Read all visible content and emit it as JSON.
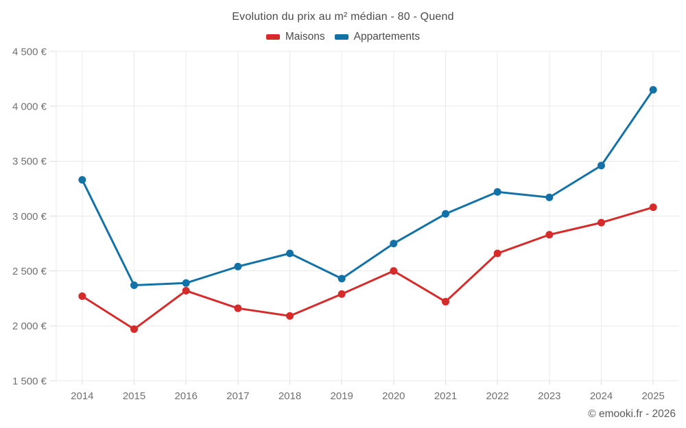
{
  "chart_data": {
    "type": "line",
    "title": "Evolution du prix au m² médian - 80 - Quend",
    "categories": [
      "2014",
      "2015",
      "2016",
      "2017",
      "2018",
      "2019",
      "2020",
      "2021",
      "2022",
      "2023",
      "2024",
      "2025"
    ],
    "series": [
      {
        "name": "Maisons",
        "color": "#d62b2b",
        "values": [
          2270,
          1970,
          2320,
          2160,
          2090,
          2290,
          2500,
          2220,
          2660,
          2830,
          2940,
          3080
        ]
      },
      {
        "name": "Appartements",
        "color": "#1272a8",
        "values": [
          3330,
          2370,
          2390,
          2540,
          2660,
          2430,
          2750,
          3020,
          3220,
          3170,
          3460,
          4150
        ]
      }
    ],
    "xlabel": "",
    "ylabel": "",
    "ylim": [
      1500,
      4500
    ],
    "ytick_values": [
      1500,
      2000,
      2500,
      3000,
      3500,
      4000,
      4500
    ],
    "ytick_labels": [
      "1 500 €",
      "2 000 €",
      "2 500 €",
      "3 000 €",
      "3 500 €",
      "4 000 €",
      "4 500 €"
    ],
    "grid": true,
    "legend_position": "top"
  },
  "footer": {
    "credit": "© emooki.fr - 2026"
  }
}
